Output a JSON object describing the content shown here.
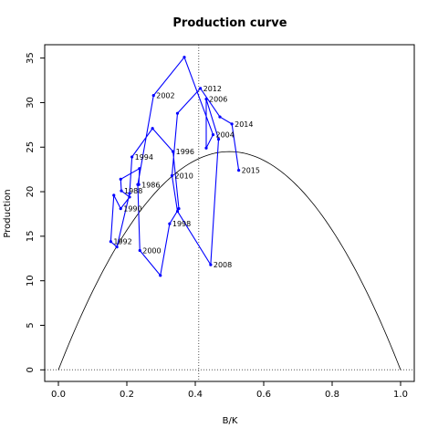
{
  "chart_data": {
    "type": "line",
    "title": "Production curve",
    "xlabel": "B/K",
    "ylabel": "Production",
    "xlim": [
      -0.04,
      1.04
    ],
    "ylim": [
      -1.3,
      36.5
    ],
    "x_ticks": [
      "0.0",
      "0.2",
      "0.4",
      "0.6",
      "0.8",
      "1.0"
    ],
    "y_ticks": [
      "0",
      "5",
      "10",
      "15",
      "20",
      "25",
      "30",
      "35"
    ],
    "grid": false,
    "legend": "none",
    "colors": {
      "observed": "#0000ff",
      "curve": "#000000",
      "reference": "#555555"
    },
    "reference_lines": {
      "vertical_x": 0.41,
      "horizontal_y": 0
    },
    "production_curve": {
      "peak_x": 0.41,
      "peak_y": 24.5,
      "x_range": [
        0,
        1
      ]
    },
    "series": [
      {
        "points": [
          {
            "x": 0.235,
            "y": 20.8,
            "label": "1986"
          },
          {
            "x": 0.237,
            "y": 22.6,
            "label": ""
          },
          {
            "x": 0.182,
            "y": 21.4,
            "label": ""
          },
          {
            "x": 0.184,
            "y": 20.1,
            "label": "1988"
          },
          {
            "x": 0.208,
            "y": 19.4,
            "label": ""
          },
          {
            "x": 0.182,
            "y": 18.1,
            "label": "1990"
          },
          {
            "x": 0.162,
            "y": 19.6,
            "label": ""
          },
          {
            "x": 0.153,
            "y": 14.4,
            "label": "1992"
          },
          {
            "x": 0.171,
            "y": 13.8,
            "label": ""
          },
          {
            "x": 0.208,
            "y": 19.8,
            "label": ""
          },
          {
            "x": 0.215,
            "y": 23.9,
            "label": "1994"
          },
          {
            "x": 0.275,
            "y": 27.1,
            "label": ""
          },
          {
            "x": 0.335,
            "y": 24.5,
            "label": "1996"
          },
          {
            "x": 0.352,
            "y": 18.1,
            "label": ""
          },
          {
            "x": 0.325,
            "y": 16.4,
            "label": "1998"
          },
          {
            "x": 0.298,
            "y": 10.6,
            "label": ""
          },
          {
            "x": 0.238,
            "y": 13.4,
            "label": "2000"
          },
          {
            "x": 0.232,
            "y": 20.8,
            "label": ""
          },
          {
            "x": 0.278,
            "y": 30.8,
            "label": "2002"
          },
          {
            "x": 0.368,
            "y": 35.1,
            "label": ""
          },
          {
            "x": 0.452,
            "y": 26.4,
            "label": "2004"
          },
          {
            "x": 0.432,
            "y": 24.9,
            "label": ""
          },
          {
            "x": 0.432,
            "y": 30.4,
            "label": "2006"
          },
          {
            "x": 0.468,
            "y": 25.9,
            "label": ""
          },
          {
            "x": 0.445,
            "y": 11.8,
            "label": "2008"
          },
          {
            "x": 0.348,
            "y": 17.8,
            "label": ""
          },
          {
            "x": 0.332,
            "y": 21.8,
            "label": "2010"
          },
          {
            "x": 0.348,
            "y": 28.8,
            "label": ""
          },
          {
            "x": 0.415,
            "y": 31.6,
            "label": "2012"
          },
          {
            "x": 0.472,
            "y": 28.4,
            "label": ""
          },
          {
            "x": 0.507,
            "y": 27.6,
            "label": "2014"
          },
          {
            "x": 0.527,
            "y": 22.4,
            "label": "2015"
          }
        ]
      }
    ]
  }
}
